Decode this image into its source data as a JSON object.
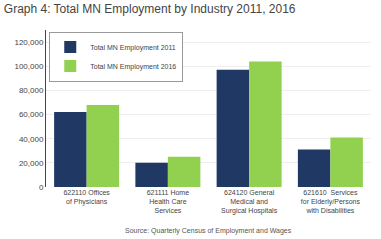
{
  "chart_data": {
    "type": "bar",
    "title": "Graph 4: Total MN Employment by Industry 2011, 2016",
    "categories": [
      "622110 Offices\nof Physicians",
      "621111 Home\nHealth Care\nServices",
      "624120 General\nMedical and\nSurgical Hospitals",
      "621610  Services\nfor Elderly/Persons\nwith Disabilities"
    ],
    "series": [
      {
        "name": "Total MN Employment 2011",
        "color": "#1F3864",
        "values": [
          62000,
          20000,
          97000,
          31000
        ]
      },
      {
        "name": "Total MN Employment 2016",
        "color": "#92D050",
        "values": [
          68000,
          25000,
          104000,
          41000
        ]
      }
    ],
    "ylim": [
      0,
      130000
    ],
    "yticks": [
      0,
      {
        "value": 20000,
        "label": "20,000"
      },
      {
        "value": 40000,
        "label": "40,000"
      },
      {
        "value": 60000,
        "label": "60,000"
      },
      {
        "value": 80000,
        "label": "80,000"
      },
      {
        "value": 100000,
        "label": "100,000"
      },
      {
        "value": 120000,
        "label": "120,000"
      }
    ],
    "grid": true,
    "legend": "upper left",
    "annotations": [
      "Source: Quarterly Census of Employment and Wages"
    ]
  }
}
